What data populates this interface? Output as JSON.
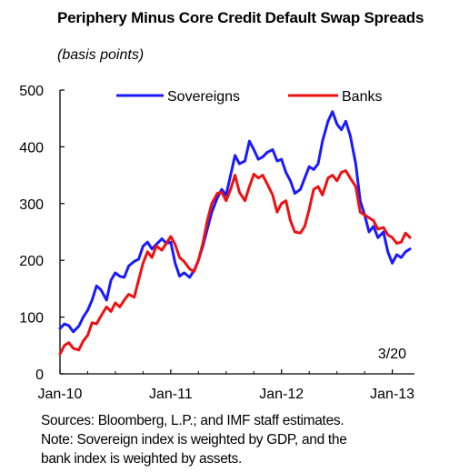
{
  "title": "Periphery Minus Core Credit Default Swap Spreads",
  "subtitle": "(basis points)",
  "date_label": "3/20",
  "sources": "Sources: Bloomberg, L.P.; and IMF staff estimates.",
  "note_lines": [
    "Note: Sovereign index is weighted by GDP, and the",
    "bank index is weighted by assets."
  ],
  "colors": {
    "sovereigns": "#1a1aff",
    "banks": "#ee1111",
    "axis": "#000000"
  },
  "chart_data": {
    "type": "line",
    "title": "Periphery Minus Core Credit Default Swap Spreads",
    "subtitle": "(basis points)",
    "ylim": [
      0,
      500
    ],
    "yticks": [
      0,
      100,
      200,
      300,
      400,
      500
    ],
    "xlim": [
      2010.0,
      2013.2
    ],
    "xticks": [
      {
        "label": "Jan-10",
        "value": 2010.0
      },
      {
        "label": "Jan-11",
        "value": 2011.0
      },
      {
        "label": "Jan-12",
        "value": 2012.0
      },
      {
        "label": "Jan-13",
        "value": 2013.0
      }
    ],
    "legend": "top",
    "series": [
      {
        "name": "Sovereigns",
        "color": "#1a1aff",
        "x": [
          2010.0,
          2010.04,
          2010.08,
          2010.12,
          2010.17,
          2010.21,
          2010.25,
          2010.29,
          2010.33,
          2010.37,
          2010.42,
          2010.46,
          2010.5,
          2010.54,
          2010.58,
          2010.62,
          2010.67,
          2010.71,
          2010.75,
          2010.79,
          2010.83,
          2010.87,
          2010.92,
          2010.96,
          2011.0,
          2011.04,
          2011.08,
          2011.12,
          2011.17,
          2011.21,
          2011.25,
          2011.29,
          2011.33,
          2011.37,
          2011.42,
          2011.46,
          2011.5,
          2011.54,
          2011.58,
          2011.62,
          2011.67,
          2011.71,
          2011.75,
          2011.79,
          2011.83,
          2011.87,
          2011.92,
          2011.96,
          2012.0,
          2012.04,
          2012.08,
          2012.12,
          2012.17,
          2012.21,
          2012.25,
          2012.29,
          2012.33,
          2012.37,
          2012.42,
          2012.46,
          2012.5,
          2012.54,
          2012.58,
          2012.62,
          2012.67,
          2012.71,
          2012.75,
          2012.79,
          2012.83,
          2012.87,
          2012.92,
          2012.96,
          2013.0,
          2013.04,
          2013.08,
          2013.12,
          2013.16
        ],
        "values": [
          80,
          88,
          85,
          74,
          84,
          100,
          112,
          130,
          155,
          148,
          130,
          165,
          178,
          172,
          170,
          190,
          198,
          202,
          225,
          232,
          220,
          228,
          238,
          230,
          232,
          195,
          172,
          178,
          170,
          182,
          200,
          225,
          255,
          285,
          310,
          325,
          315,
          350,
          385,
          370,
          375,
          410,
          395,
          378,
          382,
          390,
          395,
          375,
          378,
          355,
          340,
          318,
          325,
          345,
          365,
          360,
          370,
          410,
          445,
          462,
          440,
          430,
          445,
          420,
          370,
          305,
          280,
          250,
          260,
          240,
          250,
          215,
          195,
          210,
          205,
          215,
          220
        ]
      },
      {
        "name": "Banks",
        "color": "#ee1111",
        "x": [
          2010.0,
          2010.04,
          2010.08,
          2010.12,
          2010.17,
          2010.21,
          2010.25,
          2010.29,
          2010.33,
          2010.37,
          2010.42,
          2010.46,
          2010.5,
          2010.54,
          2010.58,
          2010.62,
          2010.67,
          2010.71,
          2010.75,
          2010.79,
          2010.83,
          2010.87,
          2010.92,
          2010.96,
          2011.0,
          2011.04,
          2011.08,
          2011.12,
          2011.17,
          2011.21,
          2011.25,
          2011.29,
          2011.33,
          2011.37,
          2011.42,
          2011.46,
          2011.5,
          2011.54,
          2011.58,
          2011.62,
          2011.67,
          2011.71,
          2011.75,
          2011.79,
          2011.83,
          2011.87,
          2011.92,
          2011.96,
          2012.0,
          2012.04,
          2012.08,
          2012.12,
          2012.17,
          2012.21,
          2012.25,
          2012.29,
          2012.33,
          2012.37,
          2012.42,
          2012.46,
          2012.5,
          2012.54,
          2012.58,
          2012.62,
          2012.67,
          2012.71,
          2012.75,
          2012.79,
          2012.83,
          2012.87,
          2012.92,
          2012.96,
          2013.0,
          2013.04,
          2013.08,
          2013.12,
          2013.16
        ],
        "values": [
          35,
          50,
          55,
          45,
          42,
          58,
          68,
          90,
          88,
          102,
          118,
          110,
          125,
          118,
          130,
          140,
          135,
          165,
          195,
          215,
          205,
          225,
          218,
          230,
          242,
          228,
          205,
          198,
          185,
          180,
          200,
          230,
          270,
          300,
          318,
          320,
          305,
          325,
          350,
          320,
          305,
          330,
          352,
          345,
          350,
          335,
          315,
          285,
          300,
          305,
          270,
          250,
          248,
          260,
          290,
          325,
          330,
          315,
          345,
          350,
          340,
          355,
          358,
          345,
          330,
          285,
          280,
          275,
          270,
          255,
          258,
          245,
          240,
          230,
          232,
          248,
          240
        ]
      }
    ]
  }
}
